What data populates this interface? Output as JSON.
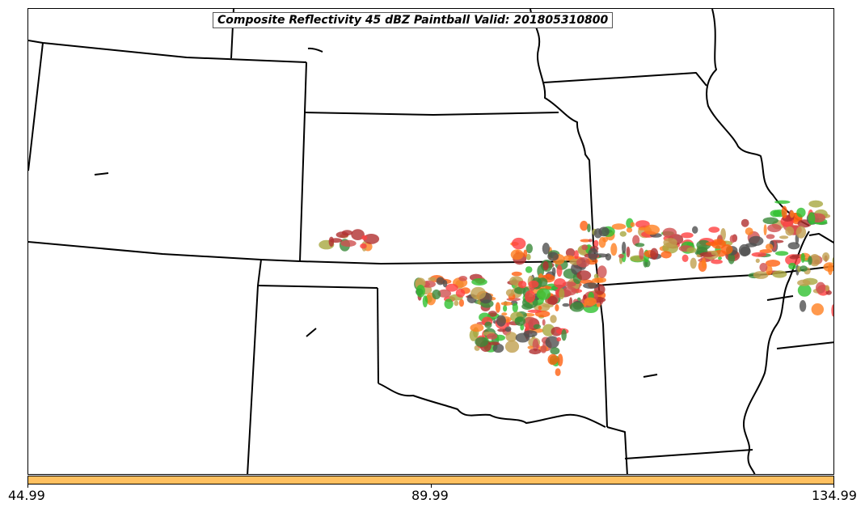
{
  "title": "Composite Reflectivity 45 dBZ Paintball Valid: 201805310800",
  "colorbar": {
    "color": "#ffc060",
    "ticks": [
      "44.99",
      "89.99",
      "134.99"
    ]
  },
  "colors": {
    "boundary": "#000000",
    "paintball_members": [
      "#ff4040",
      "#b03030",
      "#ff8020",
      "#ff6010",
      "#30c030",
      "#3a8a3a",
      "#a8a840",
      "#505050",
      "#c0a050",
      "#d05050"
    ]
  }
}
